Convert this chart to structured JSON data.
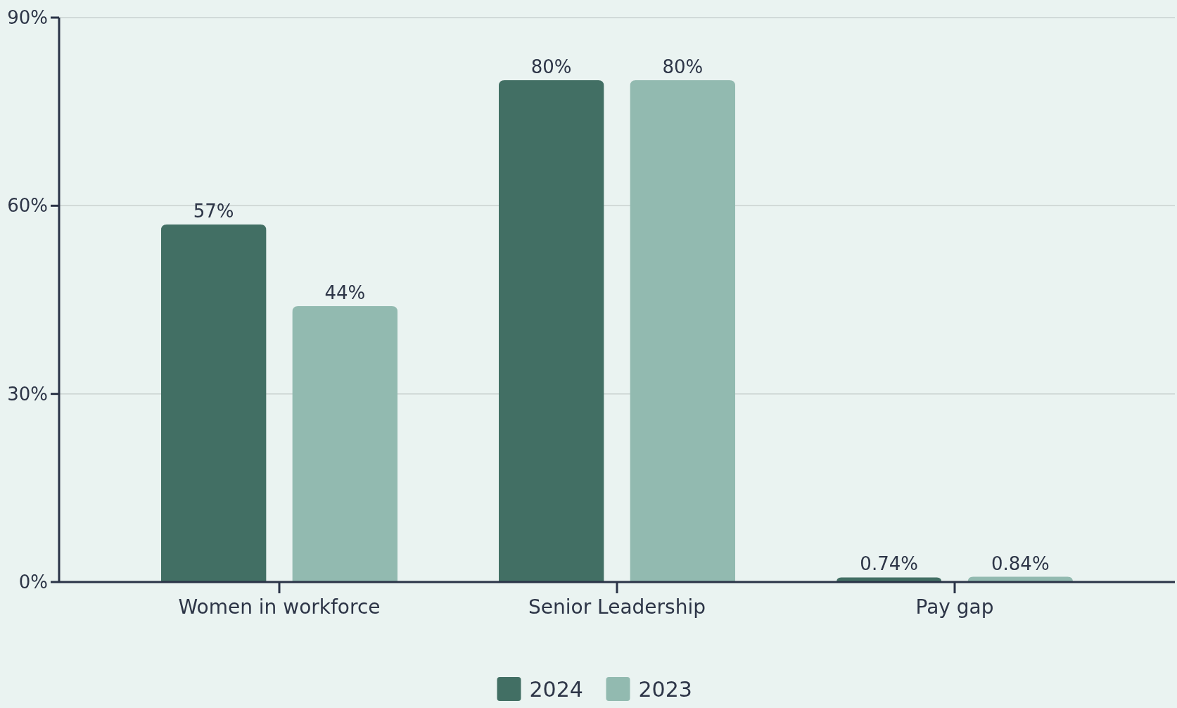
{
  "chart_data": {
    "type": "bar",
    "categories": [
      "Women in workforce",
      "Senior Leadership",
      "Pay gap"
    ],
    "series": [
      {
        "name": "2024",
        "color": "#426f64",
        "values": [
          57,
          80,
          0.74
        ],
        "value_labels": [
          "57%",
          "80%",
          "0.74%"
        ]
      },
      {
        "name": "2023",
        "color": "#92bab0",
        "values": [
          44,
          80,
          0.84
        ],
        "value_labels": [
          "44%",
          "80%",
          "0.84%"
        ]
      }
    ],
    "ylim": [
      0,
      90
    ],
    "yticks": [
      {
        "value": 0,
        "label": "0%"
      },
      {
        "value": 30,
        "label": "30%"
      },
      {
        "value": 60,
        "label": "60%"
      },
      {
        "value": 90,
        "label": "90%"
      }
    ],
    "grid": "y",
    "legend": "bottom"
  }
}
